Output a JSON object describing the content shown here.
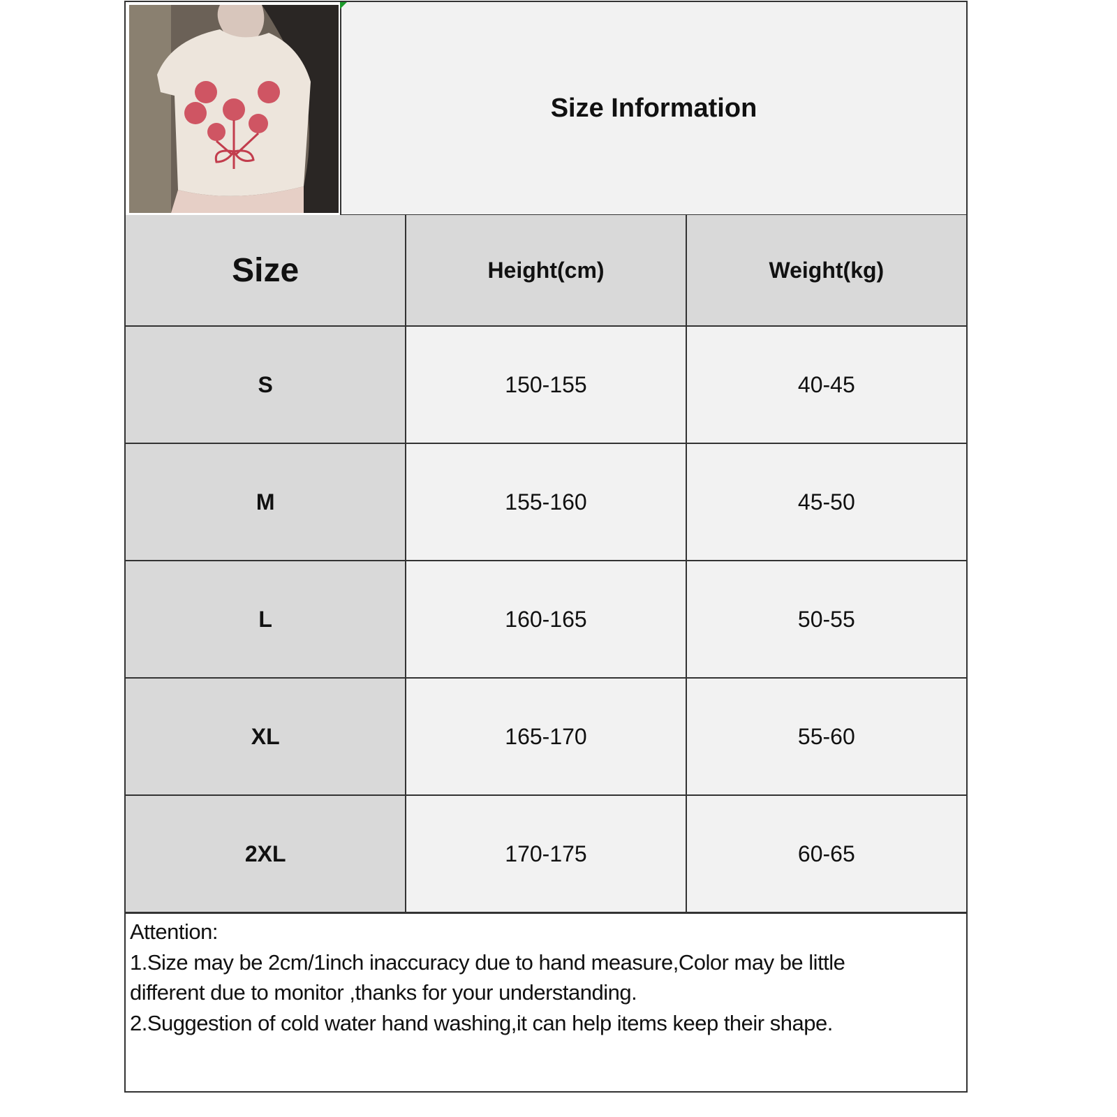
{
  "header": {
    "title": "Size Information",
    "image_alt": "Model wearing white crop t-shirt with red rose bouquet print"
  },
  "table": {
    "columns": [
      "Size",
      "Height(cm)",
      "Weight(kg)"
    ],
    "rows": [
      {
        "size": "S",
        "height": "150-155",
        "weight": "40-45"
      },
      {
        "size": "M",
        "height": "155-160",
        "weight": "45-50"
      },
      {
        "size": "L",
        "height": "160-165",
        "weight": "50-55"
      },
      {
        "size": "XL",
        "height": "165-170",
        "weight": "55-60"
      },
      {
        "size": "2XL",
        "height": "170-175",
        "weight": "60-65"
      }
    ]
  },
  "notes": {
    "heading": "Attention:",
    "line1": "1.Size may be 2cm/1inch inaccuracy due to hand measure,Color may be little",
    "line2": "different due to monitor ,thanks for your understanding.",
    "line3": "2.Suggestion of cold water hand washing,it can help items keep their shape."
  },
  "colors": {
    "header_bg": "#d9d9d9",
    "cell_bg": "#f2f2f2",
    "border": "#333333"
  }
}
